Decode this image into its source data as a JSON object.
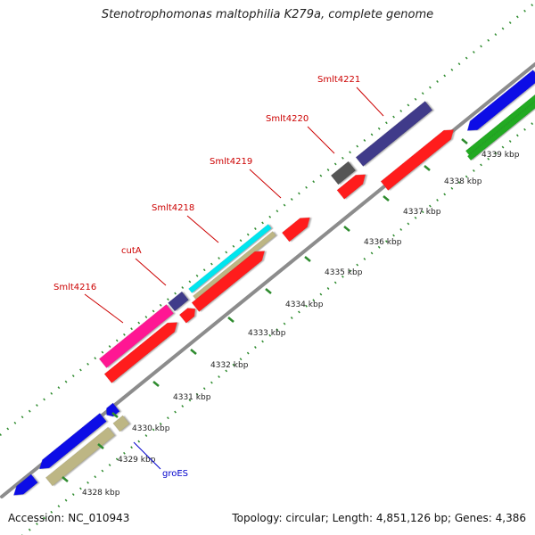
{
  "title": "Stenotrophomonas maltophilia K279a, complete genome",
  "footer": {
    "accession": "Accession: NC_010943",
    "topology": "Topology: circular; Length: 4,851,126 bp; Genes: 4,386"
  },
  "ticks": [
    {
      "label": "4328 kbp"
    },
    {
      "label": "4329 kbp"
    },
    {
      "label": "4330 kbp"
    },
    {
      "label": "4331 kbp"
    },
    {
      "label": "4332 kbp"
    },
    {
      "label": "4333 kbp"
    },
    {
      "label": "4334 kbp"
    },
    {
      "label": "4335 kbp"
    },
    {
      "label": "4336 kbp"
    },
    {
      "label": "4337 kbp"
    },
    {
      "label": "4338 kbp"
    },
    {
      "label": "4339 kbp"
    }
  ],
  "gene_labels": [
    {
      "name": "Smlt4216",
      "color": "#cc0000"
    },
    {
      "name": "cutA",
      "color": "#cc0000"
    },
    {
      "name": "Smlt4218",
      "color": "#cc0000"
    },
    {
      "name": "Smlt4219",
      "color": "#cc0000"
    },
    {
      "name": "Smlt4220",
      "color": "#cc0000"
    },
    {
      "name": "Smlt4221",
      "color": "#cc0000"
    },
    {
      "name": "groES",
      "color": "#0000cc"
    }
  ],
  "colors": {
    "backbone": "#8c8c8c",
    "dots": "#2e8b2e",
    "cds_red": "#ff1a1a",
    "cds_blue": "#0a10e6",
    "cds_tan": "#bdb684",
    "cds_slate": "#3f3a8a",
    "cds_magenta": "#ff1493",
    "cds_cyan": "#00e5ee",
    "cds_gray": "#555555",
    "cds_green": "#22aa22"
  }
}
